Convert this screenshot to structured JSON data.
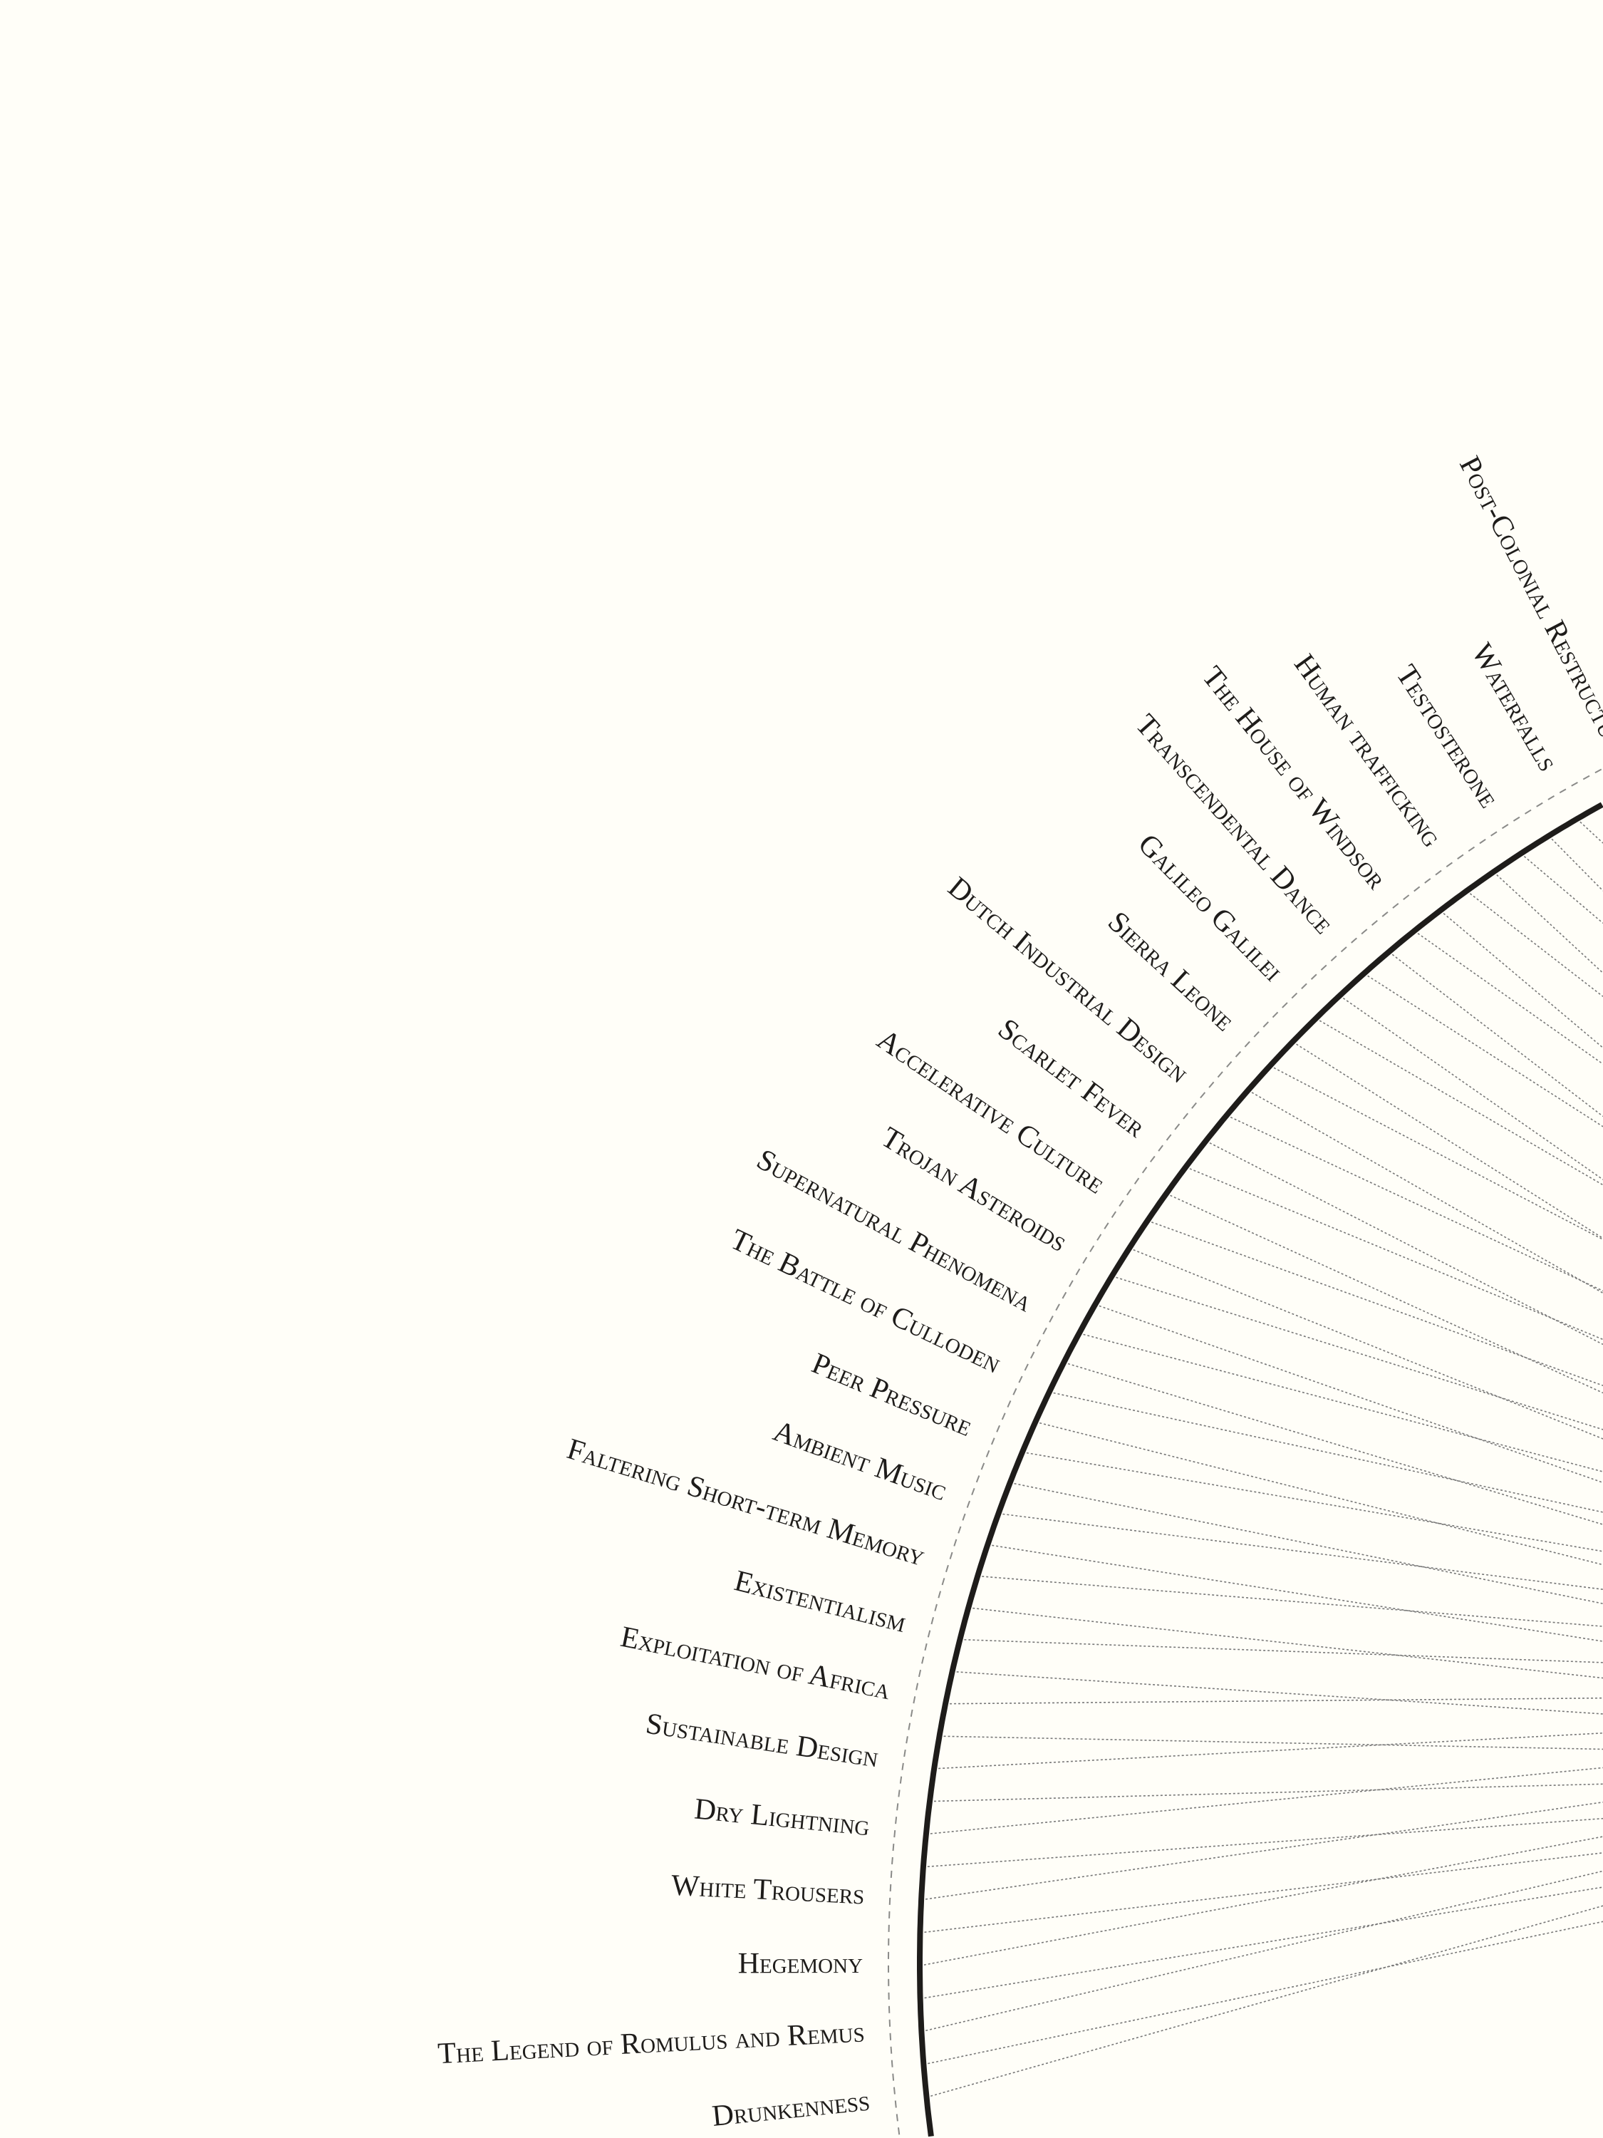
{
  "diagram": {
    "type": "radial-chord",
    "colors": {
      "background": "#fffef8",
      "ring": "#1e1c1a",
      "guide": "#8a8a88",
      "spoke": "#777777"
    },
    "labels": [
      "Drunkenness",
      "The Legend of Romulus and Remus",
      "Hegemony",
      "White Trousers",
      "Dry Lightning",
      "Sustainable Design",
      "Exploitation of Africa",
      "Existentialism",
      "Faltering Short-term Memory",
      "Ambient Music",
      "Peer Pressure",
      "The Battle of Culloden",
      "Supernatural Phenomena",
      "Trojan Asteroids",
      "Accelerative Culture",
      "Scarlet Fever",
      "Dutch Industrial Design",
      "Sierra Leone",
      "Galileo Galilei",
      "Transcendental Dance",
      "The House of Windsor",
      "Human trafficking",
      "Testosterone",
      "Waterfalls",
      "Post-Colonial Restructu"
    ]
  }
}
